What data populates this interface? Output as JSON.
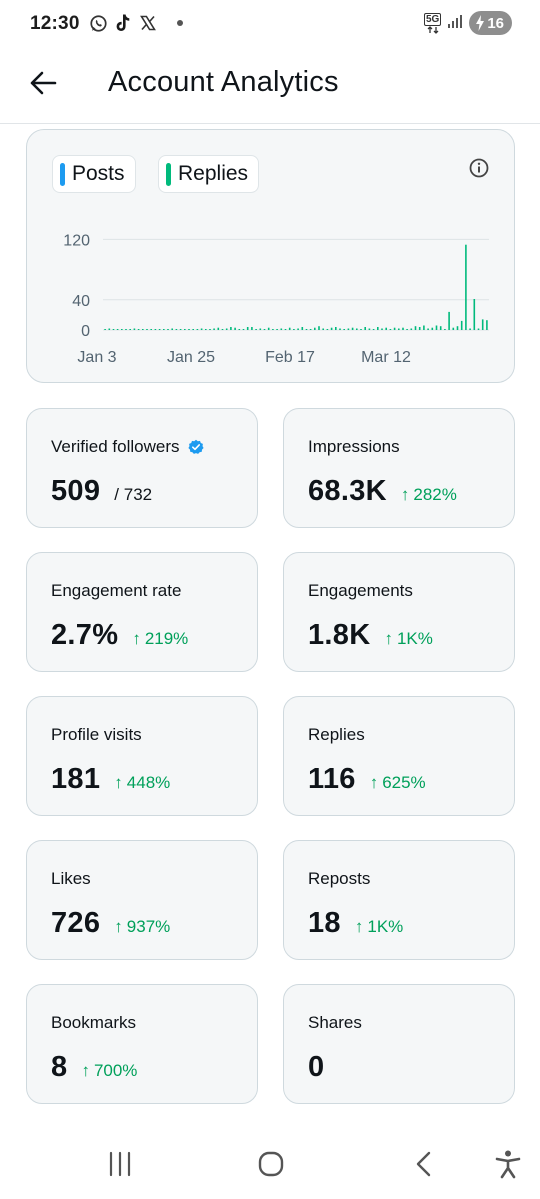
{
  "status_bar": {
    "time": "12:30",
    "left_icons": [
      "whatsapp-icon",
      "tiktok-icon",
      "x-icon",
      "dot-icon"
    ],
    "network_label": "5G",
    "battery_level": "16"
  },
  "header": {
    "title": "Account Analytics"
  },
  "chart": {
    "legend": [
      {
        "label": "Posts",
        "color": "#1d9bf0"
      },
      {
        "label": "Replies",
        "color": "#00ba7c"
      }
    ]
  },
  "chart_data": {
    "type": "bar",
    "x_tick_labels": [
      "Jan 3",
      "Jan 25",
      "Feb 17",
      "Mar 12"
    ],
    "y_ticks": [
      0,
      40,
      120
    ],
    "ylim": [
      0,
      130
    ],
    "grid": true,
    "series": [
      {
        "name": "Replies",
        "color": "#00ba7c",
        "values": [
          1,
          2,
          1,
          0,
          1,
          1,
          0,
          2,
          1,
          0,
          1,
          0,
          1,
          1,
          0,
          0,
          2,
          0,
          1,
          1,
          0,
          1,
          1,
          2,
          0,
          1,
          2,
          3,
          1,
          2,
          4,
          3,
          0,
          1,
          4,
          4,
          0,
          2,
          1,
          3,
          1,
          1,
          2,
          0,
          3,
          1,
          2,
          4,
          0,
          1,
          3,
          5,
          2,
          1,
          3,
          4,
          2,
          1,
          2,
          3,
          2,
          1,
          4,
          2,
          1,
          4,
          2,
          3,
          1,
          3,
          2,
          3,
          1,
          2,
          5,
          4,
          6,
          2,
          3,
          6,
          5,
          1,
          24,
          3,
          5,
          12,
          113,
          2,
          41,
          2,
          14,
          13
        ]
      }
    ]
  },
  "stats": [
    {
      "label": "Verified followers",
      "value": "509",
      "sub": "/ 732",
      "change": "",
      "verified": true
    },
    {
      "label": "Impressions",
      "value": "68.3K",
      "sub": "",
      "change": "282%"
    },
    {
      "label": "Engagement rate",
      "value": "2.7%",
      "sub": "",
      "change": "219%"
    },
    {
      "label": "Engagements",
      "value": "1.8K",
      "sub": "",
      "change": "1K%"
    },
    {
      "label": "Profile visits",
      "value": "181",
      "sub": "",
      "change": "448%"
    },
    {
      "label": "Replies",
      "value": "116",
      "sub": "",
      "change": "625%"
    },
    {
      "label": "Likes",
      "value": "726",
      "sub": "",
      "change": "937%"
    },
    {
      "label": "Reposts",
      "value": "18",
      "sub": "",
      "change": "1K%"
    },
    {
      "label": "Bookmarks",
      "value": "8",
      "sub": "",
      "change": "700%"
    },
    {
      "label": "Shares",
      "value": "0",
      "sub": "",
      "change": ""
    }
  ],
  "change_arrow": "↑",
  "nav": {
    "icons": [
      "recent-apps-icon",
      "home-icon",
      "back-icon",
      "accessibility-icon"
    ]
  }
}
